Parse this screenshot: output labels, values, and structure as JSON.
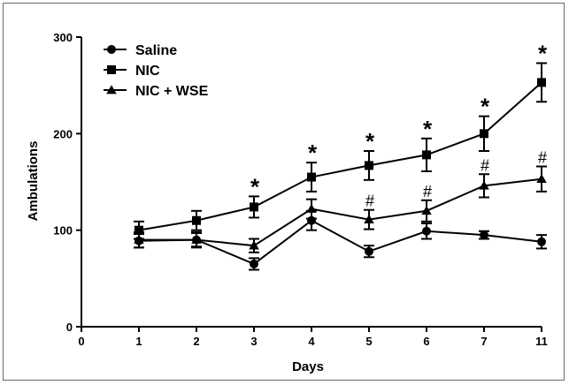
{
  "chart_data": {
    "type": "line",
    "title": "",
    "xlabel": "Days",
    "ylabel": "Ambulations",
    "x_ticks": [
      "0",
      "1",
      "2",
      "3",
      "4",
      "5",
      "6",
      "7",
      "11"
    ],
    "y_ticks": [
      "0",
      "100",
      "200",
      "300"
    ],
    "ylim": [
      0,
      300
    ],
    "categories": [
      "1",
      "2",
      "3",
      "4",
      "5",
      "6",
      "7",
      "11"
    ],
    "legend_position": "top-left",
    "grid": false,
    "series": [
      {
        "name": "Saline",
        "marker": "circle",
        "values": [
          89,
          90,
          65,
          110,
          78,
          99,
          95,
          88
        ],
        "errors": [
          7,
          7,
          6,
          10,
          6,
          8,
          4,
          7
        ]
      },
      {
        "name": "NIC",
        "marker": "square",
        "values": [
          100,
          110,
          124,
          155,
          167,
          178,
          200,
          253
        ],
        "errors": [
          9,
          10,
          11,
          15,
          15,
          17,
          18,
          20
        ]
      },
      {
        "name": "NIC + WSE",
        "marker": "triangle",
        "values": [
          90,
          90,
          84,
          122,
          111,
          120,
          146,
          153
        ],
        "errors": [
          8,
          8,
          7,
          10,
          10,
          11,
          12,
          13
        ]
      }
    ],
    "annotations": [
      {
        "category": "3",
        "text": "*",
        "above_series": "NIC"
      },
      {
        "category": "4",
        "text": "*",
        "above_series": "NIC"
      },
      {
        "category": "5",
        "text": "*",
        "above_series": "NIC"
      },
      {
        "category": "6",
        "text": "*",
        "above_series": "NIC"
      },
      {
        "category": "7",
        "text": "*",
        "above_series": "NIC"
      },
      {
        "category": "11",
        "text": "*",
        "above_series": "NIC"
      },
      {
        "category": "5",
        "text": "#",
        "above_series": "NIC + WSE"
      },
      {
        "category": "6",
        "text": "#",
        "above_series": "NIC + WSE"
      },
      {
        "category": "7",
        "text": "#",
        "above_series": "NIC + WSE"
      },
      {
        "category": "11",
        "text": "#",
        "above_series": "NIC + WSE"
      }
    ]
  }
}
